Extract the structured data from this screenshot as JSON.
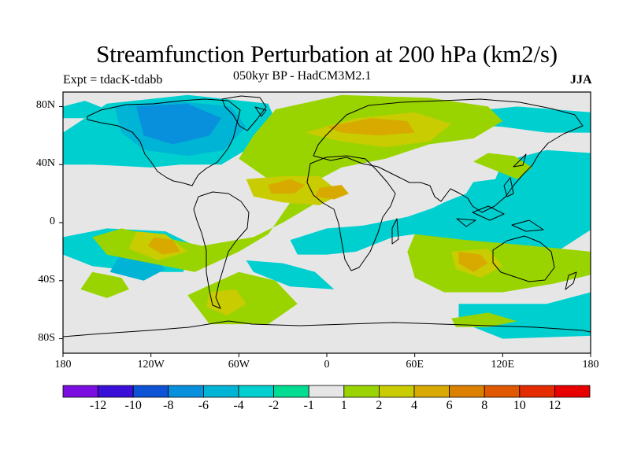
{
  "chart_data": {
    "type": "heatmap",
    "title": "Streamfunction Perturbation at 200 hPa (km2/s)",
    "subtitle": "050kyr BP - HadCM3M2.1",
    "left_label": "Expt = tdacK-tdabb",
    "right_label": "JJA",
    "xlim": [
      -180,
      180
    ],
    "ylim": [
      -90,
      90
    ],
    "x_ticks": [
      {
        "value": -180,
        "label": "180"
      },
      {
        "value": -120,
        "label": "120W"
      },
      {
        "value": -60,
        "label": "60W"
      },
      {
        "value": 0,
        "label": "0"
      },
      {
        "value": 60,
        "label": "60E"
      },
      {
        "value": 120,
        "label": "120E"
      },
      {
        "value": 180,
        "label": "180"
      }
    ],
    "y_ticks": [
      {
        "value": 80,
        "label": "80N"
      },
      {
        "value": 40,
        "label": "40N"
      },
      {
        "value": 0,
        "label": "0"
      },
      {
        "value": -40,
        "label": "40S"
      },
      {
        "value": -80,
        "label": "80S"
      }
    ],
    "colorbar": {
      "levels": [
        -12,
        -10,
        -8,
        -6,
        -4,
        -2,
        -1,
        1,
        2,
        4,
        6,
        8,
        10,
        12
      ],
      "tick_labels": [
        "-12",
        "-10",
        "-8",
        "-6",
        "-4",
        "-2",
        "-1",
        "1",
        "2",
        "4",
        "6",
        "8",
        "10",
        "12"
      ],
      "colors": [
        "#7a0de0",
        "#3a10d8",
        "#0e52d6",
        "#0890dd",
        "#00b4d6",
        "#00cfd0",
        "#00dc92",
        "#e6e6e6",
        "#9ad400",
        "#c8cc00",
        "#d8aa00",
        "#dc8000",
        "#e05800",
        "#e42c00",
        "#e80000"
      ]
    },
    "regions": [
      {
        "level": -2,
        "poly": [
          [
            -150,
            82
          ],
          [
            -95,
            88
          ],
          [
            -40,
            82
          ],
          [
            -35,
            70
          ],
          [
            -52,
            52
          ],
          [
            -72,
            40
          ],
          [
            -100,
            40
          ],
          [
            -120,
            38
          ],
          [
            -160,
            40
          ],
          [
            -180,
            40
          ],
          [
            -180,
            62
          ],
          [
            -165,
            72
          ]
        ]
      },
      {
        "level": -4,
        "poly": [
          [
            -145,
            80
          ],
          [
            -105,
            84
          ],
          [
            -65,
            80
          ],
          [
            -55,
            66
          ],
          [
            -70,
            50
          ],
          [
            -95,
            46
          ],
          [
            -125,
            50
          ],
          [
            -140,
            62
          ]
        ]
      },
      {
        "level": -6,
        "poly": [
          [
            -130,
            80
          ],
          [
            -95,
            82
          ],
          [
            -72,
            72
          ],
          [
            -80,
            60
          ],
          [
            -105,
            54
          ],
          [
            -125,
            60
          ]
        ]
      },
      {
        "level": -2,
        "poly": [
          [
            -180,
            -10
          ],
          [
            -150,
            -4
          ],
          [
            -110,
            -6
          ],
          [
            -90,
            -16
          ],
          [
            -98,
            -34
          ],
          [
            -125,
            -34
          ],
          [
            -160,
            -30
          ],
          [
            -180,
            -22
          ]
        ]
      },
      {
        "level": -4,
        "poly": [
          [
            -140,
            -20
          ],
          [
            -120,
            -24
          ],
          [
            -110,
            -32
          ],
          [
            -125,
            -40
          ],
          [
            -148,
            -34
          ]
        ]
      },
      {
        "level": -2,
        "poly": [
          [
            -55,
            -26
          ],
          [
            -30,
            -28
          ],
          [
            -8,
            -34
          ],
          [
            5,
            -46
          ],
          [
            -25,
            -44
          ],
          [
            -50,
            -34
          ]
        ]
      },
      {
        "level": -2,
        "poly": [
          [
            -25,
            -12
          ],
          [
            0,
            -4
          ],
          [
            25,
            -2
          ],
          [
            55,
            4
          ],
          [
            72,
            10
          ],
          [
            80,
            14
          ],
          [
            95,
            20
          ],
          [
            100,
            28
          ],
          [
            115,
            30
          ],
          [
            120,
            42
          ],
          [
            150,
            50
          ],
          [
            180,
            48
          ],
          [
            180,
            -5
          ],
          [
            160,
            -18
          ],
          [
            130,
            -22
          ],
          [
            95,
            -16
          ],
          [
            60,
            -8
          ],
          [
            45,
            -10
          ],
          [
            20,
            -20
          ],
          [
            0,
            -22
          ],
          [
            -20,
            -22
          ]
        ]
      },
      {
        "level": -2,
        "poly": [
          [
            90,
            -56
          ],
          [
            150,
            -56
          ],
          [
            180,
            -48
          ],
          [
            180,
            -78
          ],
          [
            120,
            -80
          ],
          [
            90,
            -68
          ]
        ]
      },
      {
        "level": -2,
        "poly": [
          [
            -180,
            80
          ],
          [
            -165,
            84
          ],
          [
            -150,
            78
          ],
          [
            -165,
            72
          ],
          [
            -180,
            72
          ]
        ]
      },
      {
        "level": -2,
        "poly": [
          [
            80,
            75
          ],
          [
            130,
            80
          ],
          [
            180,
            76
          ],
          [
            180,
            62
          ],
          [
            150,
            62
          ],
          [
            120,
            66
          ],
          [
            90,
            68
          ]
        ]
      },
      {
        "level": 2,
        "poly": [
          [
            -35,
            78
          ],
          [
            10,
            88
          ],
          [
            70,
            86
          ],
          [
            110,
            80
          ],
          [
            120,
            70
          ],
          [
            100,
            58
          ],
          [
            70,
            54
          ],
          [
            40,
            44
          ],
          [
            10,
            38
          ],
          [
            -5,
            30
          ],
          [
            -10,
            12
          ],
          [
            -30,
            0
          ],
          [
            -50,
            -10
          ],
          [
            -85,
            -16
          ],
          [
            -140,
            -4
          ],
          [
            -160,
            -10
          ],
          [
            -150,
            -22
          ],
          [
            -120,
            -28
          ],
          [
            -90,
            -34
          ],
          [
            -60,
            -20
          ],
          [
            -40,
            -8
          ],
          [
            -25,
            14
          ],
          [
            -40,
            30
          ],
          [
            -60,
            44
          ],
          [
            -50,
            60
          ]
        ]
      },
      {
        "level": 2,
        "poly": [
          [
            -95,
            -50
          ],
          [
            -60,
            -34
          ],
          [
            -35,
            -40
          ],
          [
            -20,
            -56
          ],
          [
            -40,
            -70
          ],
          [
            -80,
            -70
          ]
        ]
      },
      {
        "level": 2,
        "poly": [
          [
            60,
            -8
          ],
          [
            95,
            -12
          ],
          [
            140,
            -16
          ],
          [
            180,
            -20
          ],
          [
            180,
            -36
          ],
          [
            155,
            -42
          ],
          [
            120,
            -48
          ],
          [
            80,
            -48
          ],
          [
            60,
            -38
          ],
          [
            55,
            -20
          ]
        ]
      },
      {
        "level": 2,
        "poly": [
          [
            100,
            42
          ],
          [
            115,
            36
          ],
          [
            130,
            30
          ],
          [
            140,
            38
          ],
          [
            128,
            46
          ],
          [
            110,
            48
          ]
        ]
      },
      {
        "level": 2,
        "poly": [
          [
            -160,
            -34
          ],
          [
            -140,
            -38
          ],
          [
            -135,
            -46
          ],
          [
            -150,
            -52
          ],
          [
            -168,
            -46
          ]
        ]
      },
      {
        "level": 2,
        "poly": [
          [
            85,
            -66
          ],
          [
            110,
            -62
          ],
          [
            130,
            -68
          ],
          [
            110,
            -72
          ],
          [
            88,
            -72
          ]
        ]
      },
      {
        "level": 4,
        "poly": [
          [
            -15,
            62
          ],
          [
            20,
            72
          ],
          [
            60,
            76
          ],
          [
            85,
            68
          ],
          [
            70,
            56
          ],
          [
            40,
            52
          ],
          [
            10,
            56
          ]
        ]
      },
      {
        "level": 4,
        "poly": [
          [
            -55,
            30
          ],
          [
            -30,
            32
          ],
          [
            -5,
            32
          ],
          [
            10,
            20
          ],
          [
            -5,
            12
          ],
          [
            -30,
            14
          ],
          [
            -50,
            18
          ]
        ]
      },
      {
        "level": 4,
        "poly": [
          [
            -130,
            -6
          ],
          [
            -110,
            -8
          ],
          [
            -95,
            -20
          ],
          [
            -115,
            -26
          ],
          [
            -135,
            -18
          ]
        ]
      },
      {
        "level": 4,
        "poly": [
          [
            85,
            -20
          ],
          [
            110,
            -18
          ],
          [
            120,
            -30
          ],
          [
            105,
            -38
          ],
          [
            88,
            -32
          ]
        ]
      },
      {
        "level": 4,
        "poly": [
          [
            -80,
            -48
          ],
          [
            -62,
            -46
          ],
          [
            -55,
            -56
          ],
          [
            -68,
            -64
          ],
          [
            -82,
            -58
          ]
        ]
      },
      {
        "level": 6,
        "poly": [
          [
            0,
            66
          ],
          [
            30,
            72
          ],
          [
            55,
            70
          ],
          [
            60,
            62
          ],
          [
            35,
            60
          ],
          [
            10,
            62
          ]
        ]
      },
      {
        "level": 6,
        "poly": [
          [
            -40,
            26
          ],
          [
            -25,
            30
          ],
          [
            -15,
            26
          ],
          [
            -22,
            20
          ],
          [
            -38,
            20
          ]
        ]
      },
      {
        "level": 6,
        "poly": [
          [
            -5,
            24
          ],
          [
            10,
            26
          ],
          [
            15,
            20
          ],
          [
            5,
            16
          ],
          [
            -8,
            18
          ]
        ]
      },
      {
        "level": 6,
        "poly": [
          [
            -118,
            -10
          ],
          [
            -105,
            -12
          ],
          [
            -100,
            -20
          ],
          [
            -112,
            -22
          ],
          [
            -122,
            -16
          ]
        ]
      },
      {
        "level": 6,
        "poly": [
          [
            90,
            -20
          ],
          [
            105,
            -22
          ],
          [
            110,
            -28
          ],
          [
            100,
            -34
          ],
          [
            90,
            -28
          ]
        ]
      }
    ]
  }
}
